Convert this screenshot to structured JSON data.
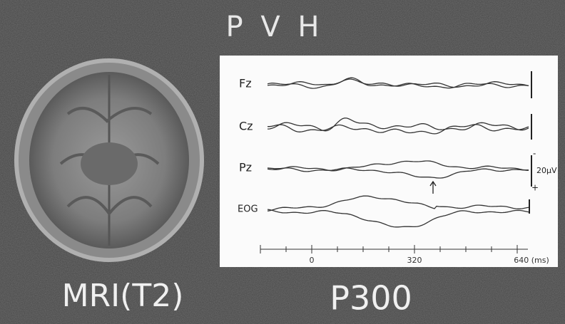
{
  "title": "P V H",
  "panel": {
    "channels": [
      "Fz",
      "Cz",
      "Pz",
      "EOG"
    ],
    "scale": {
      "label": "20μV",
      "minus": "-",
      "plus": "+"
    },
    "axis": [
      "0",
      "320",
      "640 (ms)"
    ]
  },
  "captions": [
    "MRI(T2)",
    "P300"
  ]
}
